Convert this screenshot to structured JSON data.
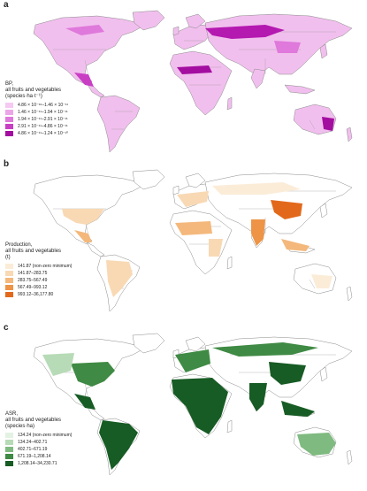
{
  "panels": [
    {
      "label": "a",
      "legend": {
        "title": [
          "BP,",
          "all fruits and vegetables",
          "(species·ha·t⁻¹)"
        ],
        "items": [
          {
            "label": "4.86 × 10⁻¹⁶–1.46 × 10⁻¹¹",
            "color": "#f5c9f2"
          },
          {
            "label": "1.46 × 10⁻¹¹–1.94 × 10⁻¹¹",
            "color": "#eca6e8"
          },
          {
            "label": "1.94 × 10⁻¹¹–2.91 × 10⁻¹¹",
            "color": "#df79db"
          },
          {
            "label": "2.91 × 10⁻¹¹–4.86 × 10⁻¹¹",
            "color": "#c93fc4"
          },
          {
            "label": "4.86 × 10⁻¹¹–1.24 × 10⁻¹⁰",
            "color": "#a30ea0"
          }
        ]
      }
    },
    {
      "label": "b",
      "legend": {
        "title": [
          "Production,",
          "all fruits and vegetables",
          "(t)"
        ],
        "items": [
          {
            "label": "141.87 (non-zero minimum)",
            "color": "#fbecd8"
          },
          {
            "label": "141.87–283.75",
            "color": "#f8d9b4"
          },
          {
            "label": "283.75–567.49",
            "color": "#f4b87c"
          },
          {
            "label": "567.49–993.12",
            "color": "#ee9447"
          },
          {
            "label": "993.12–36,177.80",
            "color": "#e2691b"
          }
        ]
      }
    },
    {
      "label": "c",
      "legend": {
        "title": [
          "ASR,",
          "all fruits and vegetables",
          "(species·ha)"
        ],
        "items": [
          {
            "label": "134.24 (non-zero minimum)",
            "color": "#e3f2e3"
          },
          {
            "label": "134.24–402.71",
            "color": "#b7dbb7"
          },
          {
            "label": "402.71–671.19",
            "color": "#7fba80"
          },
          {
            "label": "671.19–1,208.14",
            "color": "#3f8a44"
          },
          {
            "label": "1,208.14–34,230.71",
            "color": "#175c24"
          }
        ]
      }
    }
  ]
}
